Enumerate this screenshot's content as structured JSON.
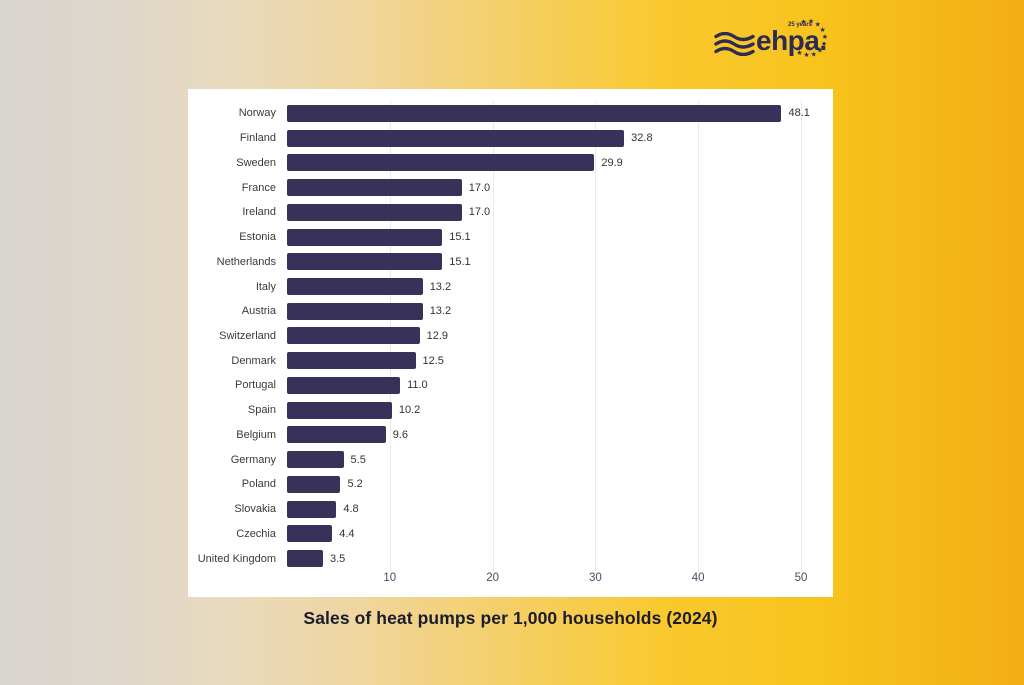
{
  "logo": {
    "wordmark": "ehpa.",
    "badge": "25 years"
  },
  "caption": "Sales of heat pumps per 1,000 households (2024)",
  "colors": {
    "bar": "#38325a",
    "grid": "#e8e8ee",
    "logo": "#2d2b55",
    "panel": "#ffffff",
    "background_left": "#d8d4cf",
    "background_right": "#f2ae14",
    "caption_text": "#1c1c2e"
  },
  "chart_data": {
    "type": "bar",
    "orientation": "horizontal",
    "title": "Sales of heat pumps per 1,000 households (2024)",
    "categories": [
      "Norway",
      "Finland",
      "Sweden",
      "France",
      "Ireland",
      "Estonia",
      "Netherlands",
      "Italy",
      "Austria",
      "Switzerland",
      "Denmark",
      "Portugal",
      "Spain",
      "Belgium",
      "Germany",
      "Poland",
      "Slovakia",
      "Czechia",
      "United Kingdom"
    ],
    "values": [
      48.1,
      32.8,
      29.9,
      17.0,
      17.0,
      15.1,
      15.1,
      13.2,
      13.2,
      12.9,
      12.5,
      11.0,
      10.2,
      9.6,
      5.5,
      5.2,
      4.8,
      4.4,
      3.5
    ],
    "xticks": [
      10,
      20,
      30,
      40,
      50
    ],
    "xlim": [
      0,
      53.1
    ],
    "xlabel": "",
    "ylabel": "",
    "grid": true,
    "legend": false,
    "value_labels": true
  }
}
